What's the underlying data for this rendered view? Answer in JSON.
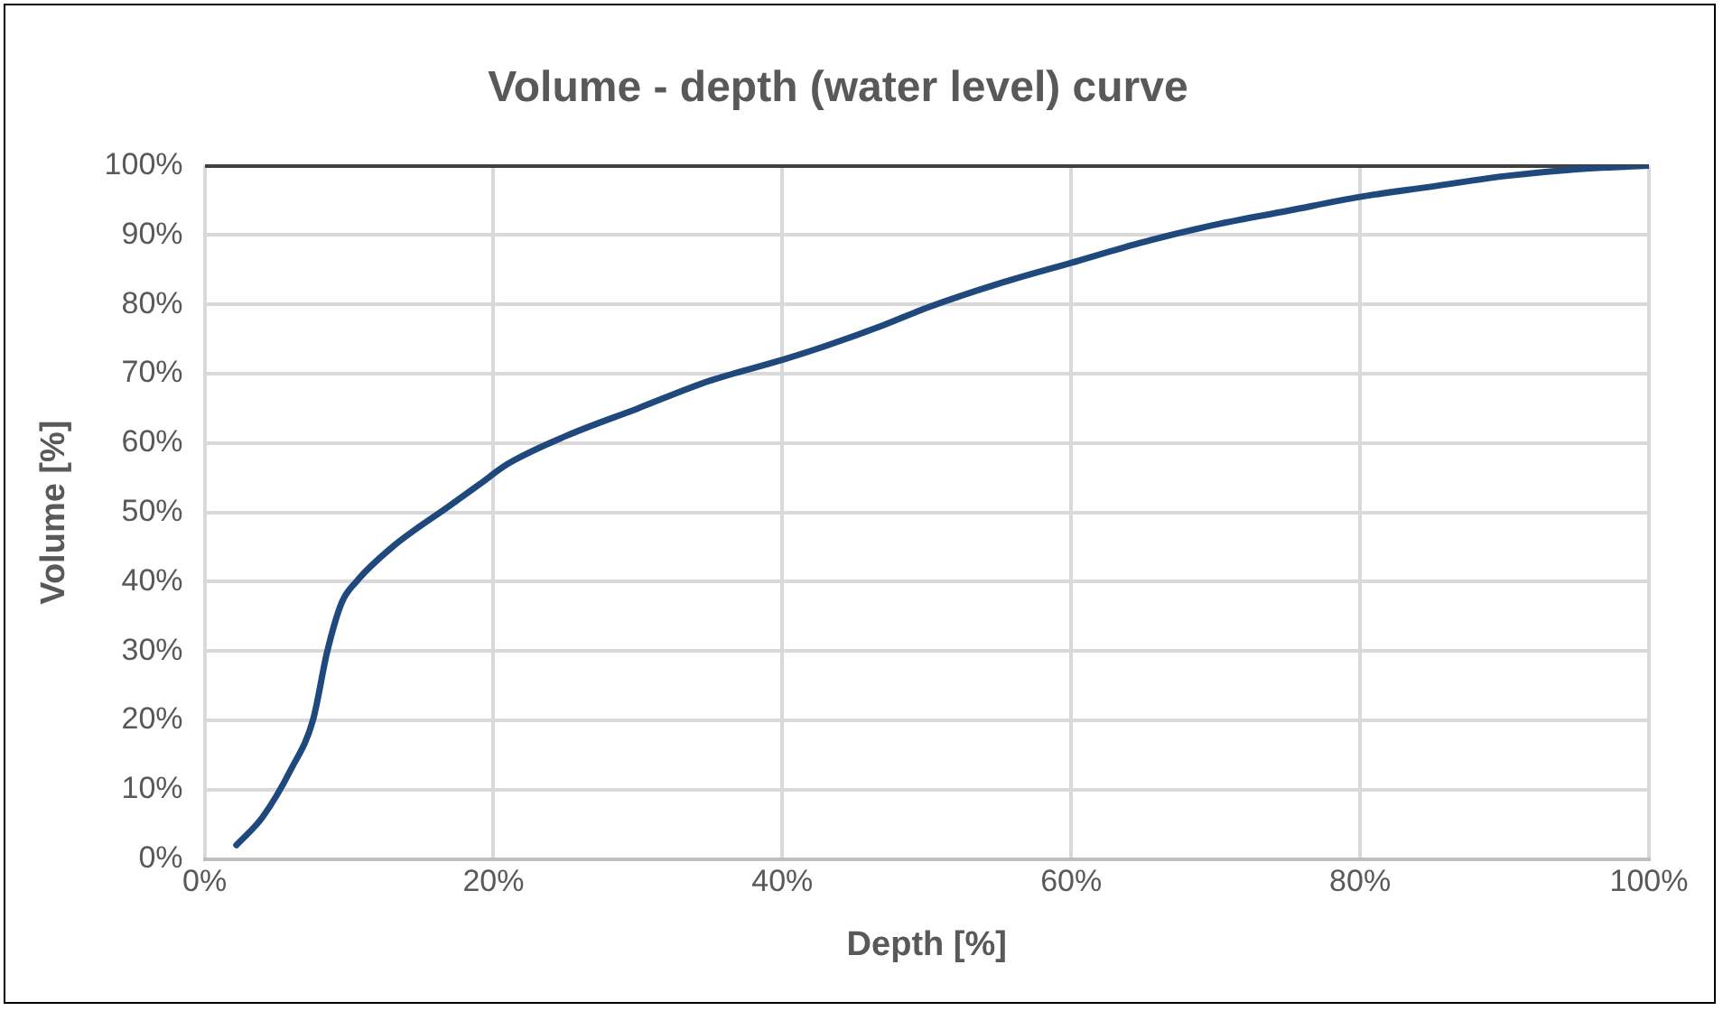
{
  "chart_data": {
    "type": "line",
    "title": "Volume - depth (water level) curve",
    "xlabel": "Depth [%]",
    "ylabel": "Volume [%]",
    "xlim": [
      0,
      100
    ],
    "ylim": [
      0,
      100
    ],
    "xticks": [
      {
        "value": 0,
        "label": "0%"
      },
      {
        "value": 20,
        "label": "20%"
      },
      {
        "value": 40,
        "label": "40%"
      },
      {
        "value": 60,
        "label": "60%"
      },
      {
        "value": 80,
        "label": "80%"
      },
      {
        "value": 100,
        "label": "100%"
      }
    ],
    "yticks": [
      {
        "value": 0,
        "label": "0%"
      },
      {
        "value": 10,
        "label": "10%"
      },
      {
        "value": 20,
        "label": "20%"
      },
      {
        "value": 30,
        "label": "30%"
      },
      {
        "value": 40,
        "label": "40%"
      },
      {
        "value": 50,
        "label": "50%"
      },
      {
        "value": 60,
        "label": "60%"
      },
      {
        "value": 70,
        "label": "70%"
      },
      {
        "value": 80,
        "label": "80%"
      },
      {
        "value": 90,
        "label": "90%"
      },
      {
        "value": 100,
        "label": "100%"
      }
    ],
    "grid": true,
    "legend": false,
    "marker": "none",
    "line_style": "solid",
    "series": [
      {
        "color": "#1f497d",
        "x": [
          2.2,
          4,
          6,
          7.5,
          8.5,
          9.5,
          10.5,
          13,
          17,
          19,
          21,
          25,
          30,
          35,
          40,
          43,
          47,
          50,
          55,
          60,
          65,
          70,
          75,
          80,
          85,
          90,
          95,
          100
        ],
        "values": [
          2,
          6,
          13,
          20,
          30,
          37,
          40,
          45,
          51,
          54,
          57,
          61,
          65,
          69,
          72,
          74,
          77,
          79.5,
          83,
          86,
          89,
          91.5,
          93.5,
          95.5,
          97,
          98.5,
          99.5,
          100
        ]
      }
    ]
  }
}
